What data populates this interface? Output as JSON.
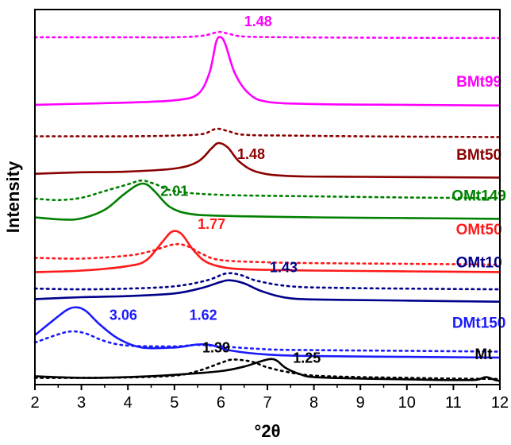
{
  "chart_data": {
    "type": "line",
    "xlabel": "°2θ",
    "ylabel": "Intensity",
    "xlim": [
      2,
      12
    ],
    "ylim": [
      0,
      100
    ],
    "xticks": [
      2,
      3,
      4,
      5,
      6,
      7,
      8,
      9,
      10,
      11,
      12
    ],
    "grid": false,
    "legend": "none",
    "series": [
      {
        "name": "Mt",
        "color": "#000000",
        "solid": [
          [
            2,
            2.2
          ],
          [
            3,
            1.8
          ],
          [
            4,
            2.0
          ],
          [
            5,
            2.6
          ],
          [
            6,
            3.6
          ],
          [
            6.5,
            4.8
          ],
          [
            6.8,
            6.0
          ],
          [
            7.05,
            6.8
          ],
          [
            7.2,
            6.4
          ],
          [
            7.4,
            4.4
          ],
          [
            7.7,
            2.8
          ],
          [
            8,
            2.0
          ],
          [
            9,
            1.6
          ],
          [
            10,
            1.4
          ],
          [
            11,
            1.2
          ],
          [
            11.5,
            1.3
          ],
          [
            11.7,
            2.0
          ],
          [
            11.9,
            1.2
          ],
          [
            12,
            1.0
          ]
        ],
        "dotted": [
          [
            2,
            1.8
          ],
          [
            3,
            1.8
          ],
          [
            4,
            1.9
          ],
          [
            5,
            2.4
          ],
          [
            5.5,
            3.6
          ],
          [
            6,
            5.8
          ],
          [
            6.2,
            6.6
          ],
          [
            6.4,
            6.6
          ],
          [
            6.7,
            6.0
          ],
          [
            7,
            4.6
          ],
          [
            7.5,
            3.2
          ],
          [
            8,
            2.4
          ],
          [
            9,
            2.0
          ],
          [
            10,
            1.8
          ],
          [
            11,
            1.6
          ],
          [
            12,
            1.5
          ]
        ]
      },
      {
        "name": "DMt150",
        "color": "#1a1aff",
        "solid": [
          [
            2,
            13.2
          ],
          [
            2.4,
            17.2
          ],
          [
            2.7,
            20.0
          ],
          [
            2.9,
            20.6
          ],
          [
            3.1,
            19.6
          ],
          [
            3.4,
            16.0
          ],
          [
            3.8,
            12.2
          ],
          [
            4.3,
            9.9
          ],
          [
            5,
            9.9
          ],
          [
            5.5,
            10.7
          ],
          [
            5.8,
            10.5
          ],
          [
            6.2,
            9.1
          ],
          [
            7,
            8.0
          ],
          [
            8,
            7.6
          ],
          [
            10,
            7.4
          ],
          [
            12,
            7.2
          ]
        ],
        "dotted": [
          [
            2,
            11.2
          ],
          [
            2.5,
            13.4
          ],
          [
            2.8,
            14.2
          ],
          [
            3.1,
            13.6
          ],
          [
            3.5,
            11.6
          ],
          [
            4,
            10.4
          ],
          [
            5,
            10.2
          ],
          [
            5.5,
            10.6
          ],
          [
            6,
            10.2
          ],
          [
            7,
            9.4
          ],
          [
            8,
            9.2
          ],
          [
            10,
            9.0
          ],
          [
            12,
            8.8
          ]
        ]
      },
      {
        "name": "OMt10",
        "color": "#00008b",
        "solid": [
          [
            2,
            22.8
          ],
          [
            3,
            23.3
          ],
          [
            4,
            23.6
          ],
          [
            5,
            24.3
          ],
          [
            5.6,
            25.8
          ],
          [
            6,
            27.4
          ],
          [
            6.2,
            27.8
          ],
          [
            6.5,
            27.0
          ],
          [
            6.9,
            24.8
          ],
          [
            7.5,
            23.0
          ],
          [
            8.5,
            22.6
          ],
          [
            10,
            22.4
          ],
          [
            12,
            22.1
          ]
        ],
        "dotted": [
          [
            2,
            25.6
          ],
          [
            3,
            25.4
          ],
          [
            4,
            25.6
          ],
          [
            5,
            26.2
          ],
          [
            5.7,
            27.8
          ],
          [
            6.1,
            29.6
          ],
          [
            6.4,
            29.3
          ],
          [
            6.8,
            27.6
          ],
          [
            7.5,
            26.2
          ],
          [
            8.5,
            25.8
          ],
          [
            10,
            25.6
          ],
          [
            12,
            25.4
          ]
        ]
      },
      {
        "name": "OMt50",
        "color": "#ff1a1a",
        "solid": [
          [
            2,
            30.0
          ],
          [
            3,
            30.4
          ],
          [
            4,
            31.6
          ],
          [
            4.4,
            33.2
          ],
          [
            4.75,
            38.2
          ],
          [
            4.95,
            40.8
          ],
          [
            5.15,
            40.2
          ],
          [
            5.4,
            36.0
          ],
          [
            5.7,
            32.6
          ],
          [
            6.2,
            31.0
          ],
          [
            7,
            30.6
          ],
          [
            8,
            30.4
          ],
          [
            10,
            30.2
          ],
          [
            12,
            30.0
          ]
        ],
        "dotted": [
          [
            2,
            33.8
          ],
          [
            3,
            33.6
          ],
          [
            4,
            34.4
          ],
          [
            4.5,
            35.6
          ],
          [
            5,
            37.4
          ],
          [
            5.3,
            36.8
          ],
          [
            5.6,
            34.8
          ],
          [
            6,
            33.2
          ],
          [
            7,
            32.6
          ],
          [
            8,
            32.4
          ],
          [
            10,
            32.2
          ],
          [
            12,
            32.0
          ]
        ]
      },
      {
        "name": "OMt149",
        "color": "#008000",
        "solid": [
          [
            2,
            44.6
          ],
          [
            2.6,
            44.0
          ],
          [
            3,
            44.3
          ],
          [
            3.5,
            46.6
          ],
          [
            3.9,
            50.6
          ],
          [
            4.2,
            53.2
          ],
          [
            4.4,
            53.4
          ],
          [
            4.6,
            51.2
          ],
          [
            4.9,
            47.4
          ],
          [
            5.3,
            45.6
          ],
          [
            6,
            45.0
          ],
          [
            8,
            44.6
          ],
          [
            10,
            44.4
          ],
          [
            12,
            44.2
          ]
        ],
        "dotted": [
          [
            2,
            49.6
          ],
          [
            2.5,
            49.2
          ],
          [
            3,
            49.8
          ],
          [
            3.5,
            51.6
          ],
          [
            4,
            53.4
          ],
          [
            4.3,
            54.4
          ],
          [
            4.6,
            53.4
          ],
          [
            5,
            51.6
          ],
          [
            6,
            50.6
          ],
          [
            8,
            50.2
          ],
          [
            10,
            49.9
          ],
          [
            12,
            49.7
          ]
        ]
      },
      {
        "name": "BMt50",
        "color": "#8b0000",
        "solid": [
          [
            2,
            56.2
          ],
          [
            3,
            56.6
          ],
          [
            4,
            56.8
          ],
          [
            5,
            57.6
          ],
          [
            5.5,
            59.4
          ],
          [
            5.8,
            63.0
          ],
          [
            5.95,
            64.4
          ],
          [
            6.15,
            63.2
          ],
          [
            6.4,
            59.4
          ],
          [
            6.8,
            56.6
          ],
          [
            7.5,
            55.6
          ],
          [
            9,
            55.4
          ],
          [
            12,
            55.2
          ]
        ],
        "dotted": [
          [
            2,
            66.2
          ],
          [
            3,
            66.2
          ],
          [
            4,
            66.2
          ],
          [
            5,
            66.4
          ],
          [
            5.6,
            66.8
          ],
          [
            5.9,
            68.2
          ],
          [
            6.15,
            67.6
          ],
          [
            6.5,
            66.6
          ],
          [
            7.5,
            66.4
          ],
          [
            9,
            66.2
          ],
          [
            12,
            66.0
          ]
        ]
      },
      {
        "name": "BMt99",
        "color": "#ff00ff",
        "solid": [
          [
            2,
            74.6
          ],
          [
            3,
            74.9
          ],
          [
            4,
            75.2
          ],
          [
            5,
            75.8
          ],
          [
            5.5,
            77.4
          ],
          [
            5.75,
            83.0
          ],
          [
            5.9,
            91.4
          ],
          [
            6.0,
            92.6
          ],
          [
            6.1,
            90.6
          ],
          [
            6.3,
            83.0
          ],
          [
            6.6,
            77.6
          ],
          [
            7,
            75.4
          ],
          [
            8,
            74.8
          ],
          [
            10,
            74.6
          ],
          [
            12,
            74.4
          ]
        ],
        "dotted": [
          [
            2,
            92.6
          ],
          [
            3,
            92.6
          ],
          [
            4,
            92.6
          ],
          [
            5,
            92.6
          ],
          [
            5.6,
            93.0
          ],
          [
            5.95,
            94.0
          ],
          [
            6.15,
            93.6
          ],
          [
            6.5,
            92.8
          ],
          [
            7.5,
            92.6
          ],
          [
            9,
            92.5
          ],
          [
            12,
            92.4
          ]
        ]
      }
    ],
    "series_labels": [
      {
        "text": "Mt",
        "x": 11.65,
        "y": 6.8,
        "color": "#000000"
      },
      {
        "text": "DMt150",
        "x": 11.55,
        "y": 15.2,
        "color": "#1a1aff"
      },
      {
        "text": "OMt10",
        "x": 11.55,
        "y": 31.2,
        "color": "#00008b"
      },
      {
        "text": "OMt50",
        "x": 11.55,
        "y": 40.0,
        "color": "#ff1a1a"
      },
      {
        "text": "OMt149",
        "x": 11.55,
        "y": 49.0,
        "color": "#008000"
      },
      {
        "text": "BMt50",
        "x": 11.55,
        "y": 60.0,
        "color": "#8b0000"
      },
      {
        "text": "BMt99",
        "x": 11.55,
        "y": 79.4,
        "color": "#ff00ff"
      }
    ],
    "annotations": [
      {
        "text": "1.48",
        "x": 6.8,
        "y": 95.6,
        "color": "#ff00ff"
      },
      {
        "text": "1.48",
        "x": 6.65,
        "y": 60.2,
        "color": "#8b0000"
      },
      {
        "text": "2.01",
        "x": 5.0,
        "y": 50.3,
        "color": "#008000"
      },
      {
        "text": "1.77",
        "x": 5.8,
        "y": 41.5,
        "color": "#ff1a1a"
      },
      {
        "text": "1.43",
        "x": 7.35,
        "y": 30.0,
        "color": "#00008b"
      },
      {
        "text": "3.06",
        "x": 3.9,
        "y": 17.3,
        "color": "#1a1aff"
      },
      {
        "text": "1.62",
        "x": 5.62,
        "y": 17.3,
        "color": "#1a1aff"
      },
      {
        "text": "1.39",
        "x": 5.9,
        "y": 8.6,
        "color": "#000000"
      },
      {
        "text": "1.25",
        "x": 7.85,
        "y": 5.8,
        "color": "#000000"
      }
    ]
  }
}
